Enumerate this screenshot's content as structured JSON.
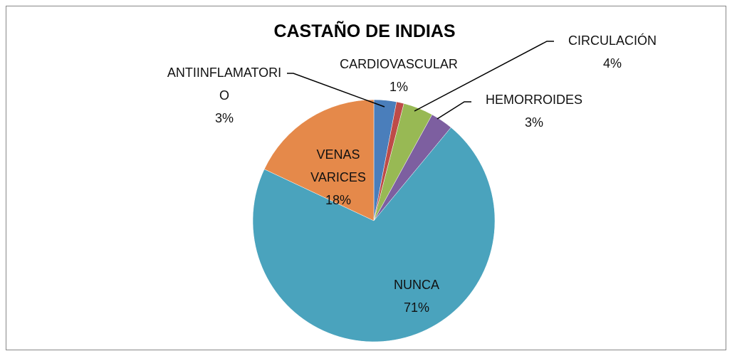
{
  "chart_data": {
    "type": "pie",
    "title": "CASTAÑO DE INDIAS",
    "categories": [
      "ANTIINFLAMATORIO",
      "CARDIOVASCULAR",
      "CIRCULACIÓN",
      "HEMORROIDES",
      "NUNCA",
      "VENAS VARICES"
    ],
    "values": [
      3,
      1,
      4,
      3,
      71,
      18
    ],
    "value_labels": [
      "3%",
      "1%",
      "4%",
      "3%",
      "71%",
      "18%"
    ],
    "colors": [
      "#4a7ebb",
      "#be4b48",
      "#98b954",
      "#7d5fa0",
      "#4aa3bd",
      "#e5894a"
    ]
  }
}
